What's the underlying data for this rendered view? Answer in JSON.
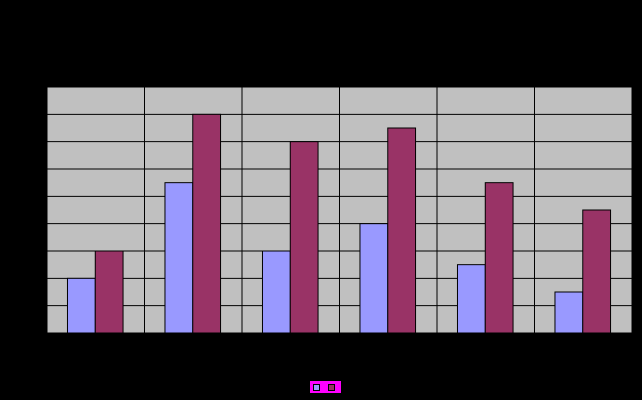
{
  "chart_data": {
    "type": "bar",
    "title": "",
    "xlabel": "",
    "ylabel": "",
    "categories": [
      "",
      "",
      "",
      "",
      "",
      ""
    ],
    "series": [
      {
        "name": "",
        "color": "#9999ff",
        "values": [
          2,
          5.5,
          3,
          4,
          2.5,
          1.5
        ]
      },
      {
        "name": "",
        "color": "#993366",
        "values": [
          3,
          8,
          7,
          7.5,
          5.5,
          4.5
        ]
      }
    ],
    "ylim": [
      0,
      9
    ],
    "grid": true,
    "legend_position": "bottom",
    "colors": {
      "background": "#000000",
      "plot_area": "#c0c0c0",
      "gridline": "#000000",
      "legend_background": "#ff00ff"
    }
  }
}
